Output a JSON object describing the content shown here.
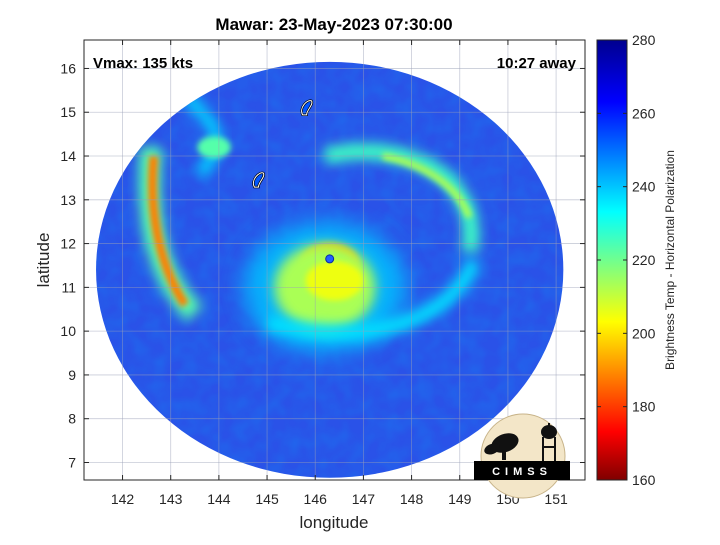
{
  "chart_data": {
    "type": "heatmap",
    "title": "Mawar: 23-May-2023 07:30:00",
    "xlabel": "longitude",
    "ylabel": "latitude",
    "xlim": [
      141.2,
      151.6
    ],
    "ylim": [
      6.6,
      16.65
    ],
    "xticks": [
      142,
      143,
      144,
      145,
      146,
      147,
      148,
      149,
      150,
      151
    ],
    "yticks": [
      7,
      8,
      9,
      10,
      11,
      12,
      13,
      14,
      15,
      16
    ],
    "grid": true,
    "annotations": {
      "vmax": "Vmax: 135 kts",
      "time_away": "10:27 away"
    },
    "colorbar": {
      "label": "Brightness Temp - Horizontal Polarization",
      "range": [
        160,
        280
      ],
      "ticks": [
        160,
        180,
        200,
        220,
        240,
        260,
        280
      ],
      "colormap": "jet"
    },
    "swath": {
      "center": [
        146.3,
        11.4
      ],
      "radius_lon": 4.85,
      "radius_lat": 4.75
    },
    "storm_center": [
      146.3,
      11.65
    ],
    "features": [
      {
        "kind": "eyewall",
        "lon": 146.3,
        "lat": 11.5,
        "value": 195
      },
      {
        "kind": "inner-core",
        "lon": 146.2,
        "lat": 11.0,
        "value": 215
      },
      {
        "kind": "western-rainband",
        "lon": 142.8,
        "lat": 12.5,
        "value": 190
      },
      {
        "kind": "northeast-rainband",
        "lon": 148.2,
        "lat": 13.2,
        "value": 228
      },
      {
        "kind": "northern-band",
        "lon": 143.9,
        "lat": 14.2,
        "value": 225
      },
      {
        "kind": "island-outline",
        "lon": 145.8,
        "lat": 15.1,
        "value": 255
      },
      {
        "kind": "island-outline",
        "lon": 144.8,
        "lat": 13.45,
        "value": 255
      }
    ],
    "logo": {
      "text": "CIMSS"
    }
  }
}
